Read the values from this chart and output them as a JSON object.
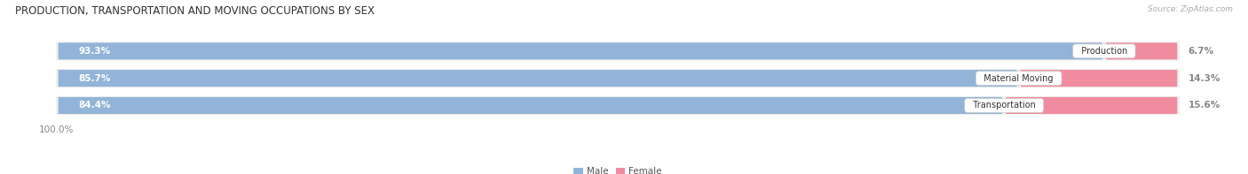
{
  "title": "PRODUCTION, TRANSPORTATION AND MOVING OCCUPATIONS BY SEX",
  "source": "Source: ZipAtlas.com",
  "categories": [
    "Production",
    "Material Moving",
    "Transportation"
  ],
  "male_pct": [
    93.3,
    85.7,
    84.4
  ],
  "female_pct": [
    6.7,
    14.3,
    15.6
  ],
  "male_color": "#92b4d8",
  "female_color": "#f08ca0",
  "row_bg_color": "#efefef",
  "label_color_male": "white",
  "label_category_color": "#333333",
  "title_fontsize": 8.5,
  "label_fontsize": 7.5,
  "category_fontsize": 7,
  "legend_fontsize": 7.5,
  "source_fontsize": 6.5,
  "figsize": [
    14.06,
    1.97
  ],
  "dpi": 100
}
